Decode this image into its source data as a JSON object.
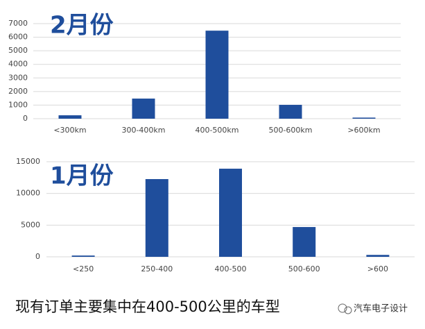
{
  "chart_data": [
    {
      "type": "bar",
      "title": "2月份",
      "categories": [
        "<300km",
        "300-400km",
        "400-500km",
        "500-600km",
        ">600km"
      ],
      "values": [
        250,
        1480,
        6480,
        1020,
        80
      ],
      "color": "#1f4e9c",
      "ylim": [
        0,
        7000
      ],
      "yticks": [
        0,
        1000,
        2000,
        3000,
        4000,
        5000,
        6000,
        7000
      ],
      "grid": true
    },
    {
      "type": "bar",
      "title": "1月份",
      "categories": [
        "<250",
        "250-400",
        "400-500",
        "500-600",
        ">600"
      ],
      "values": [
        200,
        12260,
        13900,
        4700,
        300
      ],
      "color": "#1f4e9c",
      "ylim": [
        0,
        15000
      ],
      "yticks": [
        0,
        5000,
        10000,
        15000
      ],
      "grid": true
    }
  ],
  "caption": "现有订单主要集中在400-500公里的车型",
  "watermark": "汽车电子设计"
}
